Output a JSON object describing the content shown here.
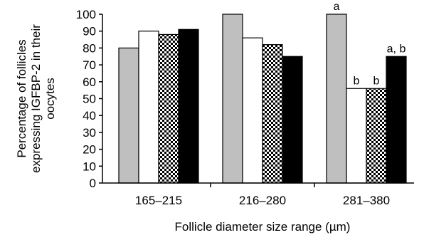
{
  "chart_data": {
    "type": "bar",
    "title": "",
    "xlabel": "Follicle diameter size range (µm)",
    "ylabel_lines": [
      "Percentage of follicles",
      "expressing IGFBP-2 in their",
      "oocytes"
    ],
    "ylim": [
      0,
      100
    ],
    "ytick_step": 10,
    "grid": false,
    "legend": "none",
    "categories": [
      "165–215",
      "216–280",
      "281–380"
    ],
    "series": [
      {
        "fill": "#bfbfbf",
        "values": [
          80,
          100,
          100
        ],
        "labels": [
          "",
          "",
          "a"
        ]
      },
      {
        "fill": "#ffffff",
        "values": [
          90,
          86,
          56
        ],
        "labels": [
          "",
          "",
          "b"
        ]
      },
      {
        "fill": "checker",
        "values": [
          88,
          82,
          56
        ],
        "labels": [
          "",
          "",
          "b"
        ]
      },
      {
        "fill": "#000000",
        "values": [
          91,
          75,
          75
        ],
        "labels": [
          "",
          "",
          "a, b"
        ]
      }
    ]
  }
}
